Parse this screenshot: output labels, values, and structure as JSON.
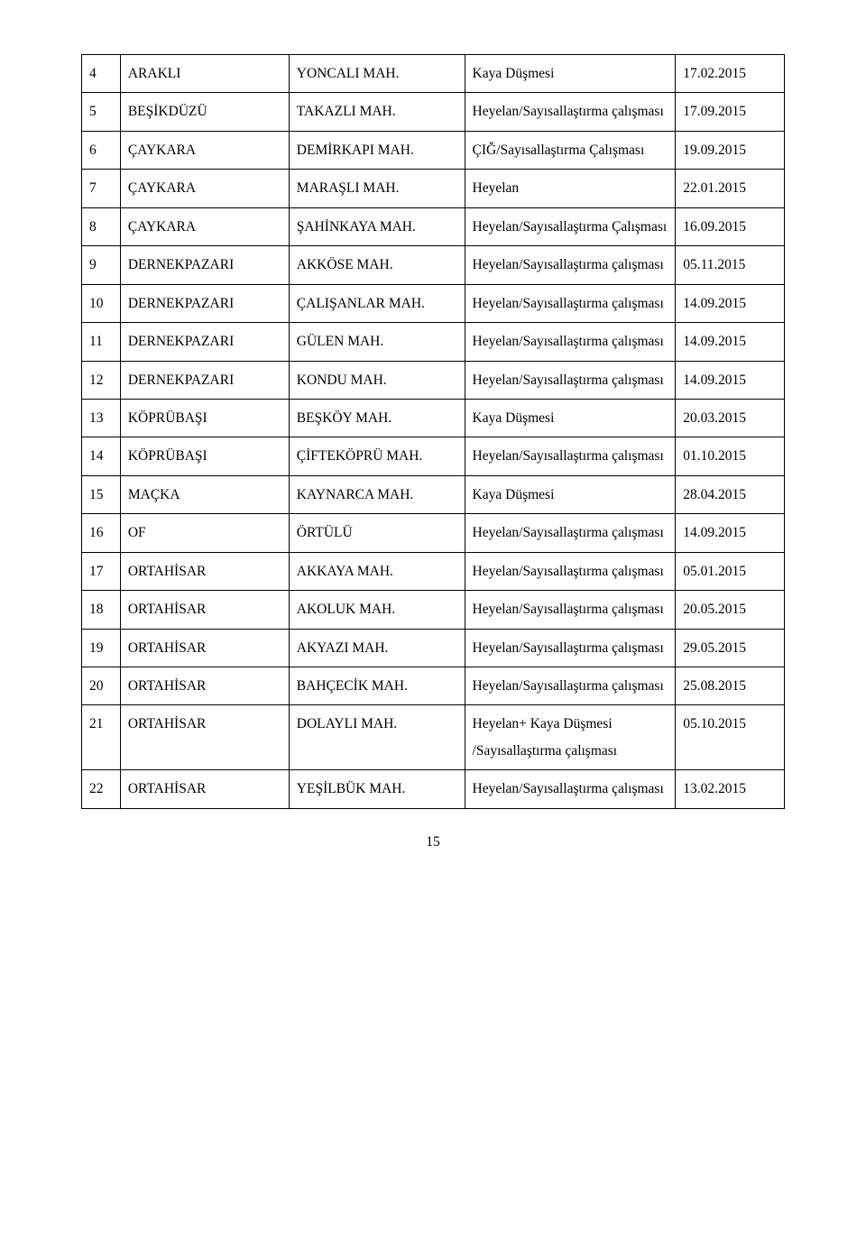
{
  "pageNumber": "15",
  "rows": [
    {
      "no": "4",
      "loc": "ARAKLI",
      "mah": "YONCALI MAH.",
      "event": "Kaya Düşmesi",
      "date": "17.02.2015"
    },
    {
      "no": "5",
      "loc": "BEŞİKDÜZÜ",
      "mah": "TAKAZLI MAH.",
      "event": "Heyelan/Sayısallaştırma çalışması",
      "date": "17.09.2015"
    },
    {
      "no": "6",
      "loc": "ÇAYKARA",
      "mah": "DEMİRKAPI MAH.",
      "event": "ÇIĞ/Sayısallaştırma Çalışması",
      "date": "19.09.2015"
    },
    {
      "no": "7",
      "loc": "ÇAYKARA",
      "mah": "MARAŞLI MAH.",
      "event": "Heyelan",
      "date": "22.01.2015"
    },
    {
      "no": "8",
      "loc": "ÇAYKARA",
      "mah": "ŞAHİNKAYA MAH.",
      "event": "Heyelan/Sayısallaştırma Çalışması",
      "date": "16.09.2015"
    },
    {
      "no": "9",
      "loc": "DERNEKPAZARI",
      "mah": "AKKÖSE MAH.",
      "event": "Heyelan/Sayısallaştırma çalışması",
      "date": "05.11.2015"
    },
    {
      "no": "10",
      "loc": "DERNEKPAZARI",
      "mah": "ÇALIŞANLAR MAH.",
      "event": "Heyelan/Sayısallaştırma çalışması",
      "date": "14.09.2015"
    },
    {
      "no": "11",
      "loc": "DERNEKPAZARI",
      "mah": "GÜLEN MAH.",
      "event": "Heyelan/Sayısallaştırma çalışması",
      "date": "14.09.2015"
    },
    {
      "no": "12",
      "loc": "DERNEKPAZARI",
      "mah": "KONDU MAH.",
      "event": "Heyelan/Sayısallaştırma çalışması",
      "date": "14.09.2015"
    },
    {
      "no": "13",
      "loc": "KÖPRÜBAŞI",
      "mah": "BEŞKÖY MAH.",
      "event": "Kaya Düşmesi",
      "date": "20.03.2015"
    },
    {
      "no": "14",
      "loc": "KÖPRÜBAŞI",
      "mah": "ÇİFTEKÖPRÜ MAH.",
      "event": "Heyelan/Sayısallaştırma çalışması",
      "date": "01.10.2015"
    },
    {
      "no": "15",
      "loc": "MAÇKA",
      "mah": "KAYNARCA MAH.",
      "event": "Kaya Düşmesi",
      "date": "28.04.2015"
    },
    {
      "no": "16",
      "loc": "OF",
      "mah": "ÖRTÜLÜ",
      "event": "Heyelan/Sayısallaştırma çalışması",
      "date": "14.09.2015"
    },
    {
      "no": "17",
      "loc": "ORTAHİSAR",
      "mah": "AKKAYA MAH.",
      "event": "Heyelan/Sayısallaştırma çalışması",
      "date": "05.01.2015"
    },
    {
      "no": "18",
      "loc": "ORTAHİSAR",
      "mah": "AKOLUK MAH.",
      "event": "Heyelan/Sayısallaştırma çalışması",
      "date": "20.05.2015"
    },
    {
      "no": "19",
      "loc": "ORTAHİSAR",
      "mah": "AKYAZI MAH.",
      "event": "Heyelan/Sayısallaştırma çalışması",
      "date": "29.05.2015"
    },
    {
      "no": "20",
      "loc": "ORTAHİSAR",
      "mah": "BAHÇECİK MAH.",
      "event": "Heyelan/Sayısallaştırma çalışması",
      "date": "25.08.2015"
    },
    {
      "no": "21",
      "loc": "ORTAHİSAR",
      "mah": "DOLAYLI MAH.",
      "event": "Heyelan+ Kaya Düşmesi /Sayısallaştırma çalışması",
      "date": "05.10.2015"
    },
    {
      "no": "22",
      "loc": "ORTAHİSAR",
      "mah": "YEŞİLBÜK MAH.",
      "event": "Heyelan/Sayısallaştırma çalışması",
      "date": "13.02.2015"
    }
  ]
}
